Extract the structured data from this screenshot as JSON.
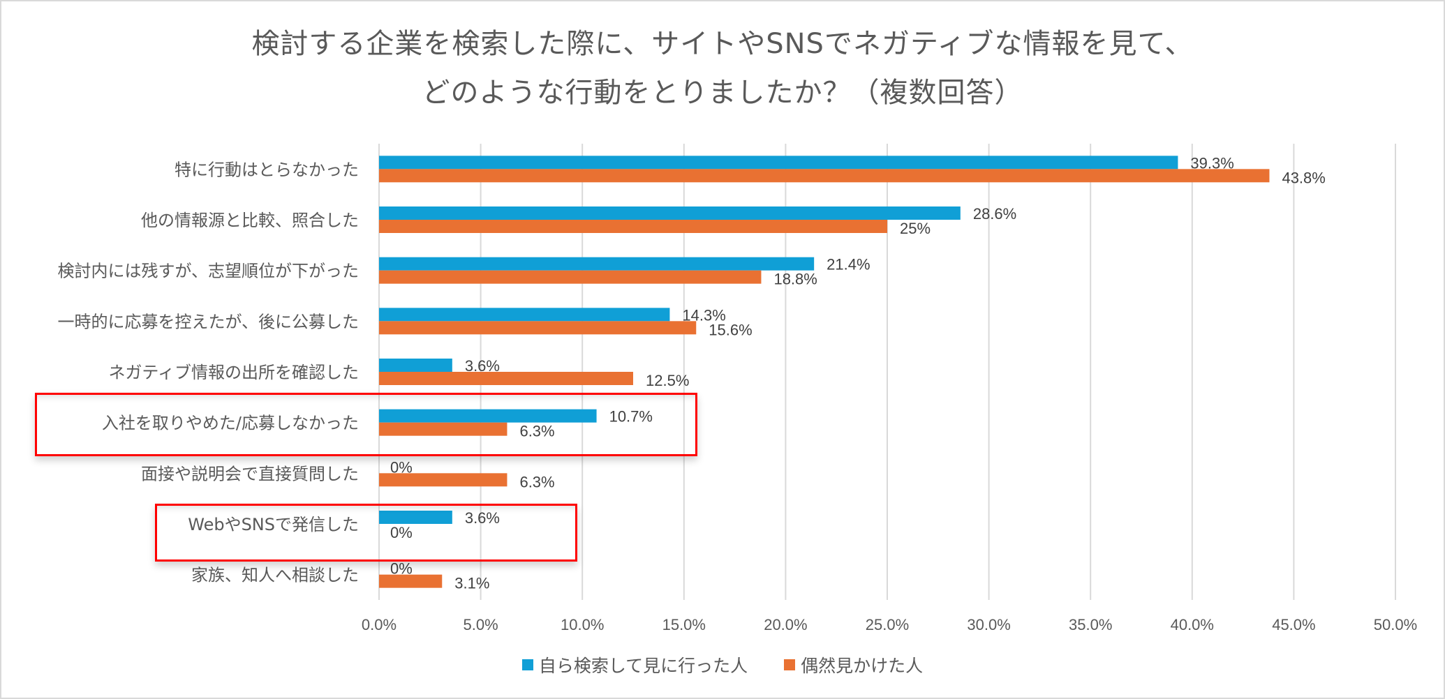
{
  "chart_data": {
    "type": "bar",
    "orientation": "horizontal",
    "title": "検討する企業を検索した際に、サイトやSNSでネガティブな情報を見て、どのような行動をとりましたか？（複数回答）",
    "title_lines": [
      "検討する企業を検索した際に、サイトやSNSでネガティブな情報を見て、",
      "どのような行動をとりましたか？（複数回答）"
    ],
    "xlabel": "",
    "ylabel": "",
    "xlim": [
      0,
      50
    ],
    "x_ticks": [
      0,
      5,
      10,
      15,
      20,
      25,
      30,
      35,
      40,
      45,
      50
    ],
    "x_tick_labels": [
      "0.0%",
      "5.0%",
      "10.0%",
      "15.0%",
      "20.0%",
      "25.0%",
      "30.0%",
      "35.0%",
      "40.0%",
      "45.0%",
      "50.0%"
    ],
    "grid": "vertical",
    "legend_position": "bottom",
    "categories": [
      "特に行動はとらなかった",
      "他の情報源と比較、照合した",
      "検討内には残すが、志望順位が下がった",
      "一時的に応募を控えたが、後に公募した",
      "ネガティブ情報の出所を確認した",
      "入社を取りやめた/応募しなかった",
      "面接や説明会で直接質問した",
      "WebやSNSで発信した",
      "家族、知人へ相談した"
    ],
    "series": [
      {
        "name": "自ら検索して見に行った人",
        "color": "#109fd6",
        "values": [
          39.3,
          28.6,
          21.4,
          14.3,
          3.6,
          10.7,
          0,
          3.6,
          0
        ],
        "labels": [
          "39.3%",
          "28.6%",
          "21.4%",
          "14.3%",
          "3.6%",
          "10.7%",
          "0%",
          "3.6%",
          "0%"
        ]
      },
      {
        "name": "偶然見かけた人",
        "color": "#e97132",
        "values": [
          43.8,
          25,
          18.8,
          15.6,
          12.5,
          6.3,
          6.3,
          0,
          3.1
        ],
        "labels": [
          "43.8%",
          "25%",
          "18.8%",
          "15.6%",
          "12.5%",
          "6.3%",
          "6.3%",
          "0%",
          "3.1%"
        ]
      }
    ],
    "annotations": [
      {
        "type": "highlight-box",
        "color": "#ff0000",
        "target_category": "入社を取りやめた/応募しなかった"
      },
      {
        "type": "highlight-box",
        "color": "#ff0000",
        "target_category": "WebやSNSで発信した"
      }
    ]
  },
  "colors": {
    "gridline": "#d9d9d9",
    "text": "#595959",
    "highlight": "#ff0000"
  }
}
